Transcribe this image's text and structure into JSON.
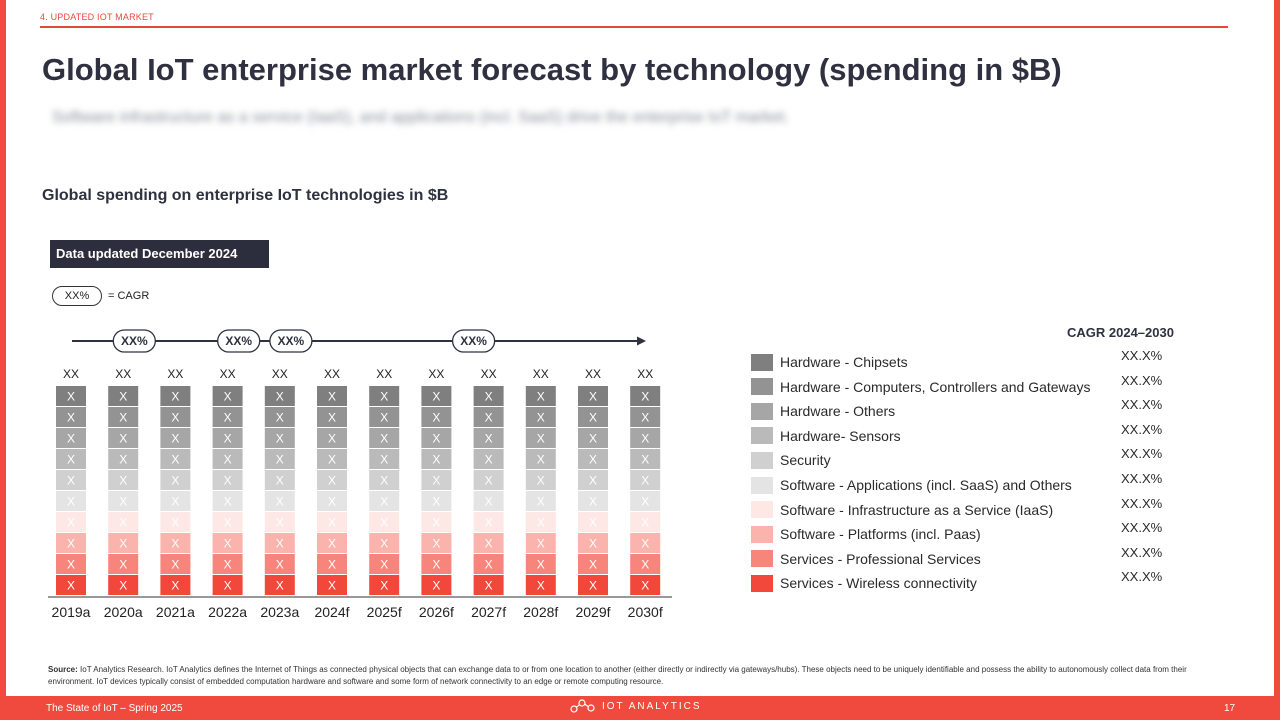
{
  "header": {
    "section": "4. UPDATED IOT MARKET",
    "title": "Global IoT enterprise market forecast by technology (spending in $B)",
    "subtitle": "Software infrastructure as a service (IaaS), and applications (incl. SaaS) drive the enterprise IoT market."
  },
  "chart_title": "Global spending on enterprise IoT technologies in $B",
  "badge": "Data updated December 2024",
  "cagr_key": {
    "pill": "XX%",
    "text": "= CAGR"
  },
  "chart_data": {
    "type": "bar",
    "stacked": true,
    "categories": [
      "2019a",
      "2020a",
      "2021a",
      "2022a",
      "2023a",
      "2024f",
      "2025f",
      "2026f",
      "2027f",
      "2028f",
      "2029f",
      "2030f"
    ],
    "totals": [
      "XX",
      "XX",
      "XX",
      "XX",
      "XX",
      "XX",
      "XX",
      "XX",
      "XX",
      "XX",
      "XX",
      "XX"
    ],
    "segment_label": "X",
    "cagr_markers": [
      "XX%",
      "XX%",
      "XX%",
      "XX%"
    ],
    "legend_title": "CAGR 2024–2030",
    "series": [
      {
        "name": "Hardware - Chipsets",
        "color": "#7f7f7f",
        "cagr": "XX.X%"
      },
      {
        "name": "Hardware - Computers, Controllers and Gateways",
        "color": "#939393",
        "cagr": "XX.X%"
      },
      {
        "name": "Hardware - Others",
        "color": "#a6a6a6",
        "cagr": "XX.X%"
      },
      {
        "name": "Hardware- Sensors",
        "color": "#bababa",
        "cagr": "XX.X%"
      },
      {
        "name": "Security",
        "color": "#d0d0d0",
        "cagr": "XX.X%"
      },
      {
        "name": "Software - Applications (incl. SaaS) and Others",
        "color": "#e4e4e4",
        "cagr": "XX.X%"
      },
      {
        "name": "Software - Infrastructure as a Service (IaaS)",
        "color": "#fde8e6",
        "cagr": "XX.X%"
      },
      {
        "name": "Software - Platforms (incl. Paas)",
        "color": "#fbb3ad",
        "cagr": "XX.X%"
      },
      {
        "name": "Services - Professional Services",
        "color": "#f8857c",
        "cagr": "XX.X%"
      },
      {
        "name": "Services - Wireless connectivity",
        "color": "#f2473b",
        "cagr": "XX.X%"
      }
    ]
  },
  "source": {
    "label": "Source:",
    "text": "IoT Analytics Research. IoT Analytics defines the Internet of Things as connected physical objects that can exchange data to or from one location to another (either directly or indirectly via gateways/hubs). These objects need to be uniquely identifiable and possess the ability to autonomously collect data from their environment. IoT devices typically consist of embedded computation hardware and software and some form of network connectivity to an edge or remote computing resource."
  },
  "footer": {
    "left": "The State of IoT – Spring 2025",
    "logo": "IOT ANALYTICS",
    "page": "17"
  }
}
